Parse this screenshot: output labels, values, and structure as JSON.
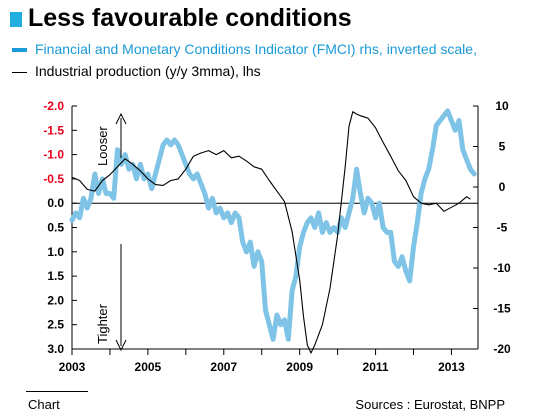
{
  "title": "Less favourable conditions",
  "legend": [
    "Financial and Monetary Conditions Indicator (FMCI) rhs, inverted scale,",
    "Industrial production (y/y 3mma), lhs"
  ],
  "footer": {
    "left": "Chart",
    "right": "Sources : Eurostat, BNPP"
  },
  "colors": {
    "fmci": "#7fc4e6",
    "fmci_legend": "#1a9ad6",
    "ip": "#000000",
    "left_axis": "#e8001c",
    "title_square": "#22aee0"
  },
  "chart_data": {
    "type": "line",
    "annotations": [
      "Looser",
      "Tighter"
    ],
    "x_ticks": [
      "2003",
      "2005",
      "2007",
      "2009",
      "2011",
      "2013"
    ],
    "left_axis": {
      "orientation": "inverted",
      "range": [
        -2.0,
        3.0
      ],
      "tick_labels": [
        "-2.0",
        "-1.5",
        "-1.0",
        "-0.5",
        "0.0",
        "0.5",
        "1.0",
        "1.5",
        "2.0",
        "2.5",
        "3.0"
      ]
    },
    "right_axis": {
      "range": [
        -20,
        10
      ],
      "tick_labels": [
        "10",
        "5",
        "0",
        "-5",
        "-10",
        "-15",
        "-20"
      ]
    },
    "series": [
      {
        "name": "Financial and Monetary Conditions Indicator (FMCI) rhs, inverted scale,",
        "axis": "left",
        "points": [
          [
            2003.0,
            0.35
          ],
          [
            2003.1,
            0.2
          ],
          [
            2003.2,
            0.3
          ],
          [
            2003.3,
            -0.1
          ],
          [
            2003.4,
            0.1
          ],
          [
            2003.5,
            -0.1
          ],
          [
            2003.6,
            -0.6
          ],
          [
            2003.7,
            -0.2
          ],
          [
            2003.8,
            -0.5
          ],
          [
            2003.9,
            -0.2
          ],
          [
            2004.0,
            -0.2
          ],
          [
            2004.1,
            -0.1
          ],
          [
            2004.2,
            -1.1
          ],
          [
            2004.3,
            -0.8
          ],
          [
            2004.4,
            -1.0
          ],
          [
            2004.5,
            -0.7
          ],
          [
            2004.6,
            -0.8
          ],
          [
            2004.7,
            -0.5
          ],
          [
            2004.8,
            -0.8
          ],
          [
            2004.9,
            -0.5
          ],
          [
            2005.0,
            -0.6
          ],
          [
            2005.1,
            -0.3
          ],
          [
            2005.2,
            -0.6
          ],
          [
            2005.3,
            -0.9
          ],
          [
            2005.4,
            -1.2
          ],
          [
            2005.5,
            -1.3
          ],
          [
            2005.6,
            -1.2
          ],
          [
            2005.7,
            -1.3
          ],
          [
            2005.8,
            -1.2
          ],
          [
            2005.9,
            -1.0
          ],
          [
            2006.0,
            -0.8
          ],
          [
            2006.1,
            -0.6
          ],
          [
            2006.2,
            -0.5
          ],
          [
            2006.3,
            -0.6
          ],
          [
            2006.4,
            -0.4
          ],
          [
            2006.5,
            -0.2
          ],
          [
            2006.6,
            0.1
          ],
          [
            2006.7,
            -0.1
          ],
          [
            2006.8,
            0.2
          ],
          [
            2006.9,
            0.1
          ],
          [
            2007.0,
            0.3
          ],
          [
            2007.1,
            0.2
          ],
          [
            2007.2,
            0.4
          ],
          [
            2007.3,
            0.2
          ],
          [
            2007.4,
            0.3
          ],
          [
            2007.5,
            0.8
          ],
          [
            2007.6,
            1.0
          ],
          [
            2007.7,
            0.8
          ],
          [
            2007.8,
            1.3
          ],
          [
            2007.9,
            1.0
          ],
          [
            2008.0,
            1.2
          ],
          [
            2008.1,
            2.2
          ],
          [
            2008.2,
            2.5
          ],
          [
            2008.3,
            2.8
          ],
          [
            2008.4,
            2.3
          ],
          [
            2008.5,
            2.5
          ],
          [
            2008.6,
            2.4
          ],
          [
            2008.7,
            2.8
          ],
          [
            2008.8,
            1.8
          ],
          [
            2008.9,
            1.5
          ],
          [
            2009.0,
            0.9
          ],
          [
            2009.1,
            0.6
          ],
          [
            2009.2,
            0.4
          ],
          [
            2009.3,
            0.3
          ],
          [
            2009.4,
            0.5
          ],
          [
            2009.5,
            0.2
          ],
          [
            2009.6,
            0.6
          ],
          [
            2009.7,
            0.4
          ],
          [
            2009.8,
            0.6
          ],
          [
            2009.9,
            0.5
          ],
          [
            2010.0,
            0.6
          ],
          [
            2010.1,
            0.3
          ],
          [
            2010.2,
            0.5
          ],
          [
            2010.3,
            0.2
          ],
          [
            2010.4,
            -0.1
          ],
          [
            2010.5,
            -0.7
          ],
          [
            2010.6,
            -0.2
          ],
          [
            2010.7,
            0.2
          ],
          [
            2010.8,
            -0.1
          ],
          [
            2010.9,
            0.0
          ],
          [
            2011.0,
            0.3
          ],
          [
            2011.1,
            0.0
          ],
          [
            2011.2,
            0.5
          ],
          [
            2011.3,
            0.6
          ],
          [
            2011.4,
            0.6
          ],
          [
            2011.5,
            1.2
          ],
          [
            2011.6,
            1.3
          ],
          [
            2011.7,
            1.1
          ],
          [
            2011.8,
            1.4
          ],
          [
            2011.9,
            1.6
          ],
          [
            2012.0,
            0.9
          ],
          [
            2012.1,
            0.4
          ],
          [
            2012.2,
            -0.2
          ],
          [
            2012.3,
            -0.5
          ],
          [
            2012.4,
            -0.7
          ],
          [
            2012.5,
            -1.1
          ],
          [
            2012.6,
            -1.6
          ],
          [
            2012.7,
            -1.7
          ],
          [
            2012.8,
            -1.8
          ],
          [
            2012.9,
            -1.9
          ],
          [
            2013.0,
            -1.7
          ],
          [
            2013.1,
            -1.5
          ],
          [
            2013.2,
            -1.7
          ],
          [
            2013.3,
            -1.1
          ],
          [
            2013.4,
            -0.9
          ],
          [
            2013.5,
            -0.7
          ],
          [
            2013.6,
            -0.6
          ]
        ]
      },
      {
        "name": "Industrial production (y/y 3mma), lhs",
        "axis": "right",
        "points": [
          [
            2003.0,
            1.2
          ],
          [
            2003.2,
            0.8
          ],
          [
            2003.4,
            -0.3
          ],
          [
            2003.6,
            -0.5
          ],
          [
            2003.8,
            0.8
          ],
          [
            2004.0,
            1.5
          ],
          [
            2004.2,
            2.5
          ],
          [
            2004.4,
            3.5
          ],
          [
            2004.6,
            2.8
          ],
          [
            2004.8,
            2.0
          ],
          [
            2005.0,
            1.0
          ],
          [
            2005.2,
            0.3
          ],
          [
            2005.4,
            0.2
          ],
          [
            2005.6,
            0.8
          ],
          [
            2005.8,
            1.0
          ],
          [
            2006.0,
            2.2
          ],
          [
            2006.2,
            3.8
          ],
          [
            2006.4,
            4.2
          ],
          [
            2006.6,
            4.5
          ],
          [
            2006.8,
            4.0
          ],
          [
            2007.0,
            4.5
          ],
          [
            2007.2,
            3.6
          ],
          [
            2007.4,
            3.8
          ],
          [
            2007.6,
            3.2
          ],
          [
            2007.8,
            2.5
          ],
          [
            2008.0,
            2.2
          ],
          [
            2008.2,
            0.8
          ],
          [
            2008.4,
            -0.5
          ],
          [
            2008.6,
            -1.8
          ],
          [
            2008.8,
            -5.5
          ],
          [
            2009.0,
            -11.5
          ],
          [
            2009.1,
            -16.0
          ],
          [
            2009.2,
            -19.5
          ],
          [
            2009.3,
            -20.5
          ],
          [
            2009.4,
            -19.5
          ],
          [
            2009.6,
            -17.0
          ],
          [
            2009.8,
            -12.5
          ],
          [
            2010.0,
            -6.0
          ],
          [
            2010.2,
            2.5
          ],
          [
            2010.3,
            7.5
          ],
          [
            2010.4,
            9.3
          ],
          [
            2010.5,
            9.0
          ],
          [
            2010.6,
            8.8
          ],
          [
            2010.8,
            8.5
          ],
          [
            2011.0,
            7.3
          ],
          [
            2011.2,
            5.5
          ],
          [
            2011.4,
            3.8
          ],
          [
            2011.6,
            2.0
          ],
          [
            2011.8,
            0.8
          ],
          [
            2012.0,
            -1.2
          ],
          [
            2012.2,
            -2.0
          ],
          [
            2012.4,
            -2.2
          ],
          [
            2012.6,
            -2.0
          ],
          [
            2012.8,
            -3.0
          ],
          [
            2013.0,
            -2.5
          ],
          [
            2013.2,
            -2.0
          ],
          [
            2013.4,
            -1.2
          ],
          [
            2013.5,
            -1.5
          ]
        ]
      }
    ]
  }
}
